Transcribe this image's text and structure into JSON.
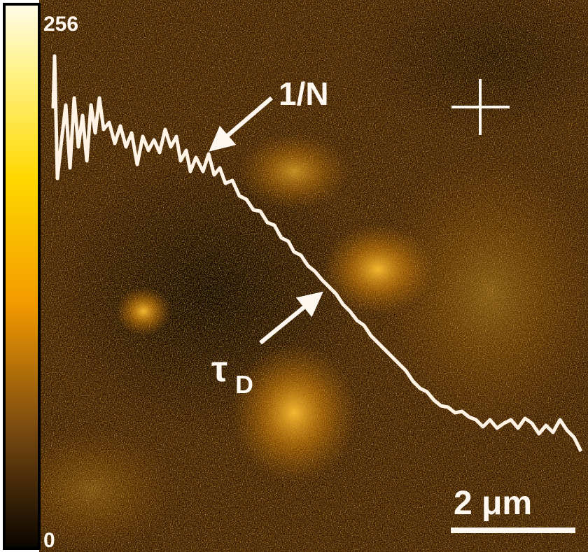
{
  "colorbar": {
    "max_label": "256",
    "min_label": "0"
  },
  "annotations": {
    "amplitude": "1/N",
    "diffusion_time": "τ",
    "diffusion_time_subscript": "D"
  },
  "scale_bar": {
    "label": "2 μm"
  }
}
